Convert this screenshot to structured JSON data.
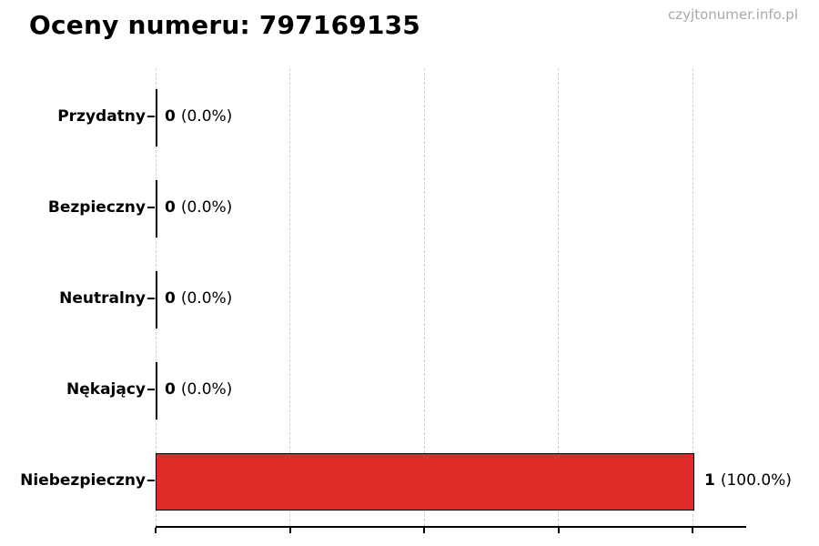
{
  "title": "Oceny numeru: 797169135",
  "watermark": "czyjtonumer.info.pl",
  "colors": {
    "bar_fill": "#e02b28",
    "bar_border": "#000000",
    "gridline": "#cfcfcf",
    "axis": "#000000",
    "watermark_text": "#a9a9a9",
    "text": "#000000"
  },
  "rows": [
    {
      "label": "Przydatny",
      "count": "0",
      "pct": "(0.0%)"
    },
    {
      "label": "Bezpieczny",
      "count": "0",
      "pct": "(0.0%)"
    },
    {
      "label": "Neutralny",
      "count": "0",
      "pct": "(0.0%)"
    },
    {
      "label": "Nękający",
      "count": "0",
      "pct": "(0.0%)"
    },
    {
      "label": "Niebezpieczny",
      "count": "1",
      "pct": "(100.0%)"
    }
  ],
  "chart_data": {
    "type": "bar",
    "orientation": "horizontal",
    "title": "Oceny numeru: 797169135",
    "categories": [
      "Przydatny",
      "Bezpieczny",
      "Neutralny",
      "Nękający",
      "Niebezpieczny"
    ],
    "values": [
      0,
      0,
      0,
      0,
      1
    ],
    "percentages": [
      0.0,
      0.0,
      0.0,
      0.0,
      100.0
    ],
    "data_labels": [
      "0 (0.0%)",
      "0 (0.0%)",
      "0 (0.0%)",
      "0 (0.0%)",
      "1 (100.0%)"
    ],
    "xlabel": "",
    "ylabel": "",
    "xlim": [
      0,
      1.1
    ],
    "x_ticks": [
      0,
      0.25,
      0.5,
      0.75,
      1.0
    ],
    "x_tick_labels_visible": false,
    "grid": "vertical-dashed",
    "legend": "none",
    "bar_colors": [
      "#e02b28",
      "#e02b28",
      "#e02b28",
      "#e02b28",
      "#e02b28"
    ]
  }
}
